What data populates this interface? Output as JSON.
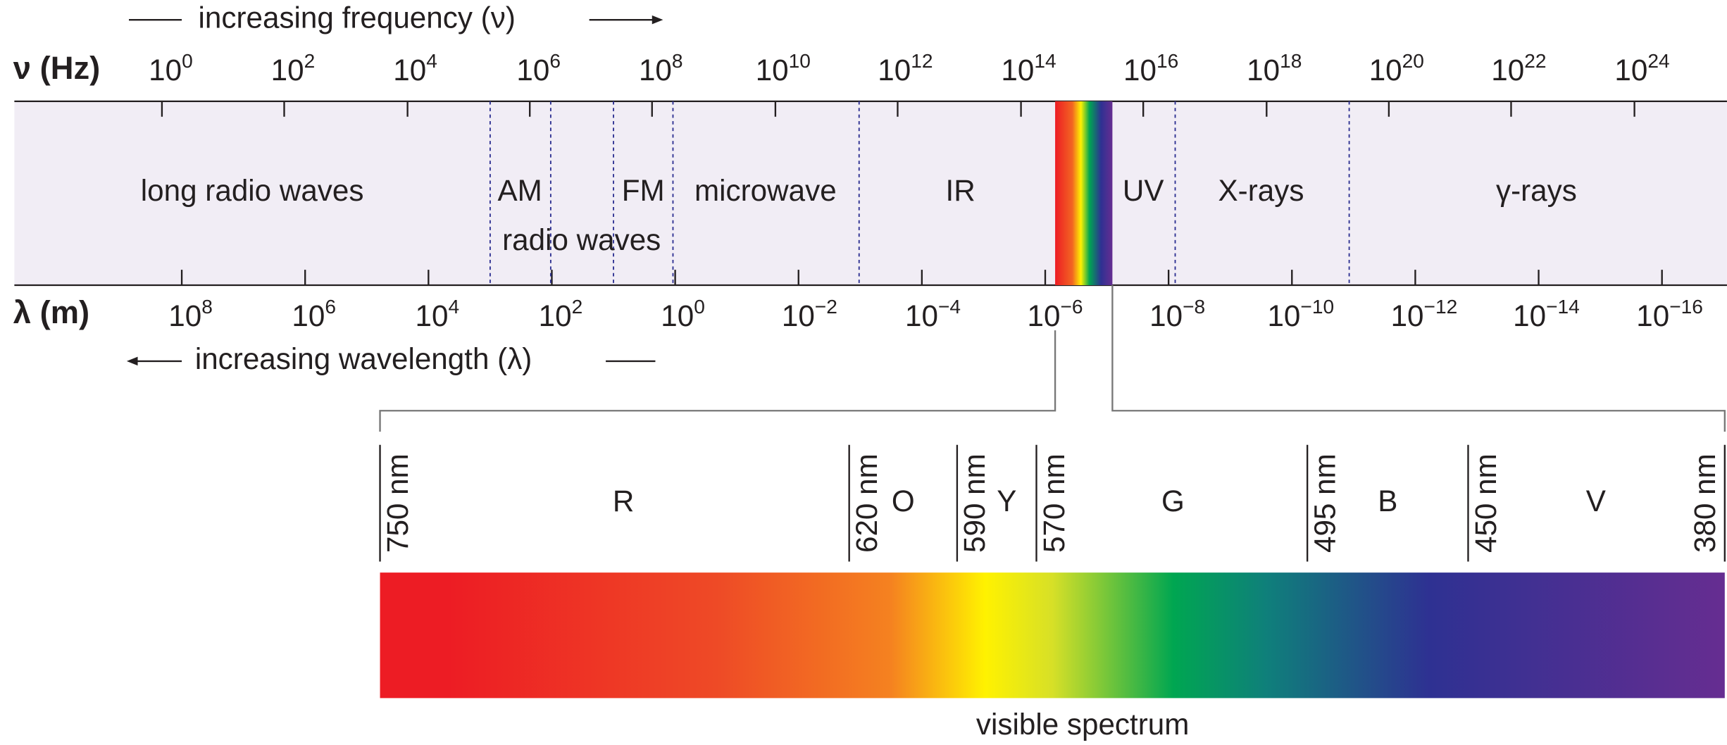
{
  "header": {
    "frequency_arrow": "increasing frequency (ν)",
    "frequency_axis": "ν (Hz)",
    "wavelength_axis": "λ (m)",
    "wavelength_arrow": "increasing wavelength (λ)"
  },
  "frequency_labels": [
    {
      "base": "10",
      "exponent": "0"
    },
    {
      "base": "10",
      "exponent": "2"
    },
    {
      "base": "10",
      "exponent": "4"
    },
    {
      "base": "10",
      "exponent": "6"
    },
    {
      "base": "10",
      "exponent": "8"
    },
    {
      "base": "10",
      "exponent": "10"
    },
    {
      "base": "10",
      "exponent": "12"
    },
    {
      "base": "10",
      "exponent": "14"
    },
    {
      "base": "10",
      "exponent": "16"
    },
    {
      "base": "10",
      "exponent": "18"
    },
    {
      "base": "10",
      "exponent": "20"
    },
    {
      "base": "10",
      "exponent": "22"
    },
    {
      "base": "10",
      "exponent": "24"
    }
  ],
  "wavelength_labels": [
    {
      "base": "10",
      "exponent": "8"
    },
    {
      "base": "10",
      "exponent": "6"
    },
    {
      "base": "10",
      "exponent": "4"
    },
    {
      "base": "10",
      "exponent": "2"
    },
    {
      "base": "10",
      "exponent": "0"
    },
    {
      "base": "10",
      "exponent": "−2"
    },
    {
      "base": "10",
      "exponent": "−4"
    },
    {
      "base": "10",
      "exponent": "−6"
    },
    {
      "base": "10",
      "exponent": "−8"
    },
    {
      "base": "10",
      "exponent": "−10"
    },
    {
      "base": "10",
      "exponent": "−12"
    },
    {
      "base": "10",
      "exponent": "−14"
    },
    {
      "base": "10",
      "exponent": "−16"
    }
  ],
  "bands": [
    "long radio waves",
    "AM",
    "FM",
    "radio waves",
    "microwave",
    "IR",
    "UV",
    "X-rays",
    "γ-rays"
  ],
  "visible": {
    "boundaries": [
      "750 nm",
      "620 nm",
      "590 nm",
      "570 nm",
      "495 nm",
      "450 nm",
      "380 nm"
    ],
    "colors": [
      "R",
      "O",
      "Y",
      "G",
      "B",
      "V"
    ],
    "caption": "visible spectrum"
  }
}
